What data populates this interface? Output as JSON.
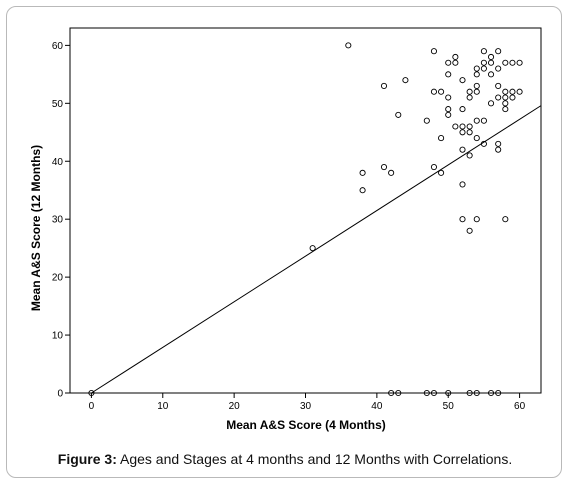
{
  "caption": {
    "label": "Figure 3:",
    "text": " Ages and Stages at 4 months and 12 Months with Correlations."
  },
  "chart_data": {
    "type": "scatter",
    "title": "",
    "xlabel": "Mean A&S Score (4 Months)",
    "ylabel": "Mean A&S Score (12 Months)",
    "xlim": [
      -3,
      63
    ],
    "ylim": [
      0,
      63
    ],
    "xticks": [
      0,
      10,
      20,
      30,
      40,
      50,
      60
    ],
    "yticks": [
      0,
      10,
      20,
      30,
      40,
      50,
      60
    ],
    "grid": false,
    "marker": "open-circle",
    "points": [
      [
        0,
        0
      ],
      [
        31,
        25
      ],
      [
        36,
        60
      ],
      [
        38,
        38
      ],
      [
        38,
        35
      ],
      [
        41,
        53
      ],
      [
        41,
        39
      ],
      [
        42,
        38
      ],
      [
        43,
        48
      ],
      [
        44,
        54
      ],
      [
        47,
        47
      ],
      [
        48,
        59
      ],
      [
        48,
        52
      ],
      [
        48,
        39
      ],
      [
        49,
        44
      ],
      [
        49,
        38
      ],
      [
        49,
        52
      ],
      [
        50,
        57
      ],
      [
        50,
        55
      ],
      [
        50,
        51
      ],
      [
        50,
        49
      ],
      [
        50,
        48
      ],
      [
        51,
        58
      ],
      [
        51,
        57
      ],
      [
        51,
        46
      ],
      [
        52,
        54
      ],
      [
        52,
        49
      ],
      [
        52,
        46
      ],
      [
        52,
        45
      ],
      [
        52,
        42
      ],
      [
        52,
        36
      ],
      [
        52,
        30
      ],
      [
        53,
        52
      ],
      [
        53,
        51
      ],
      [
        53,
        46
      ],
      [
        53,
        45
      ],
      [
        53,
        41
      ],
      [
        53,
        28
      ],
      [
        54,
        56
      ],
      [
        54,
        55
      ],
      [
        54,
        53
      ],
      [
        54,
        52
      ],
      [
        54,
        47
      ],
      [
        54,
        44
      ],
      [
        54,
        30
      ],
      [
        55,
        59
      ],
      [
        55,
        57
      ],
      [
        55,
        56
      ],
      [
        55,
        47
      ],
      [
        55,
        43
      ],
      [
        56,
        58
      ],
      [
        56,
        57
      ],
      [
        56,
        55
      ],
      [
        56,
        50
      ],
      [
        57,
        59
      ],
      [
        57,
        56
      ],
      [
        57,
        53
      ],
      [
        57,
        51
      ],
      [
        57,
        43
      ],
      [
        57,
        42
      ],
      [
        58,
        57
      ],
      [
        58,
        52
      ],
      [
        58,
        51
      ],
      [
        58,
        50
      ],
      [
        58,
        49
      ],
      [
        58,
        30
      ],
      [
        59,
        57
      ],
      [
        59,
        52
      ],
      [
        59,
        51
      ],
      [
        60,
        57
      ],
      [
        60,
        52
      ],
      [
        42,
        0
      ],
      [
        43,
        0
      ],
      [
        47,
        0
      ],
      [
        48,
        0
      ],
      [
        50,
        0
      ],
      [
        53,
        0
      ],
      [
        54,
        0
      ],
      [
        56,
        0
      ],
      [
        57,
        0
      ]
    ],
    "fit_line": {
      "x": [
        0,
        63
      ],
      "y": [
        0,
        49.6
      ]
    }
  },
  "colors": {
    "axis": "#000000",
    "marker": "#000000",
    "frame": "#b9b9b9"
  }
}
